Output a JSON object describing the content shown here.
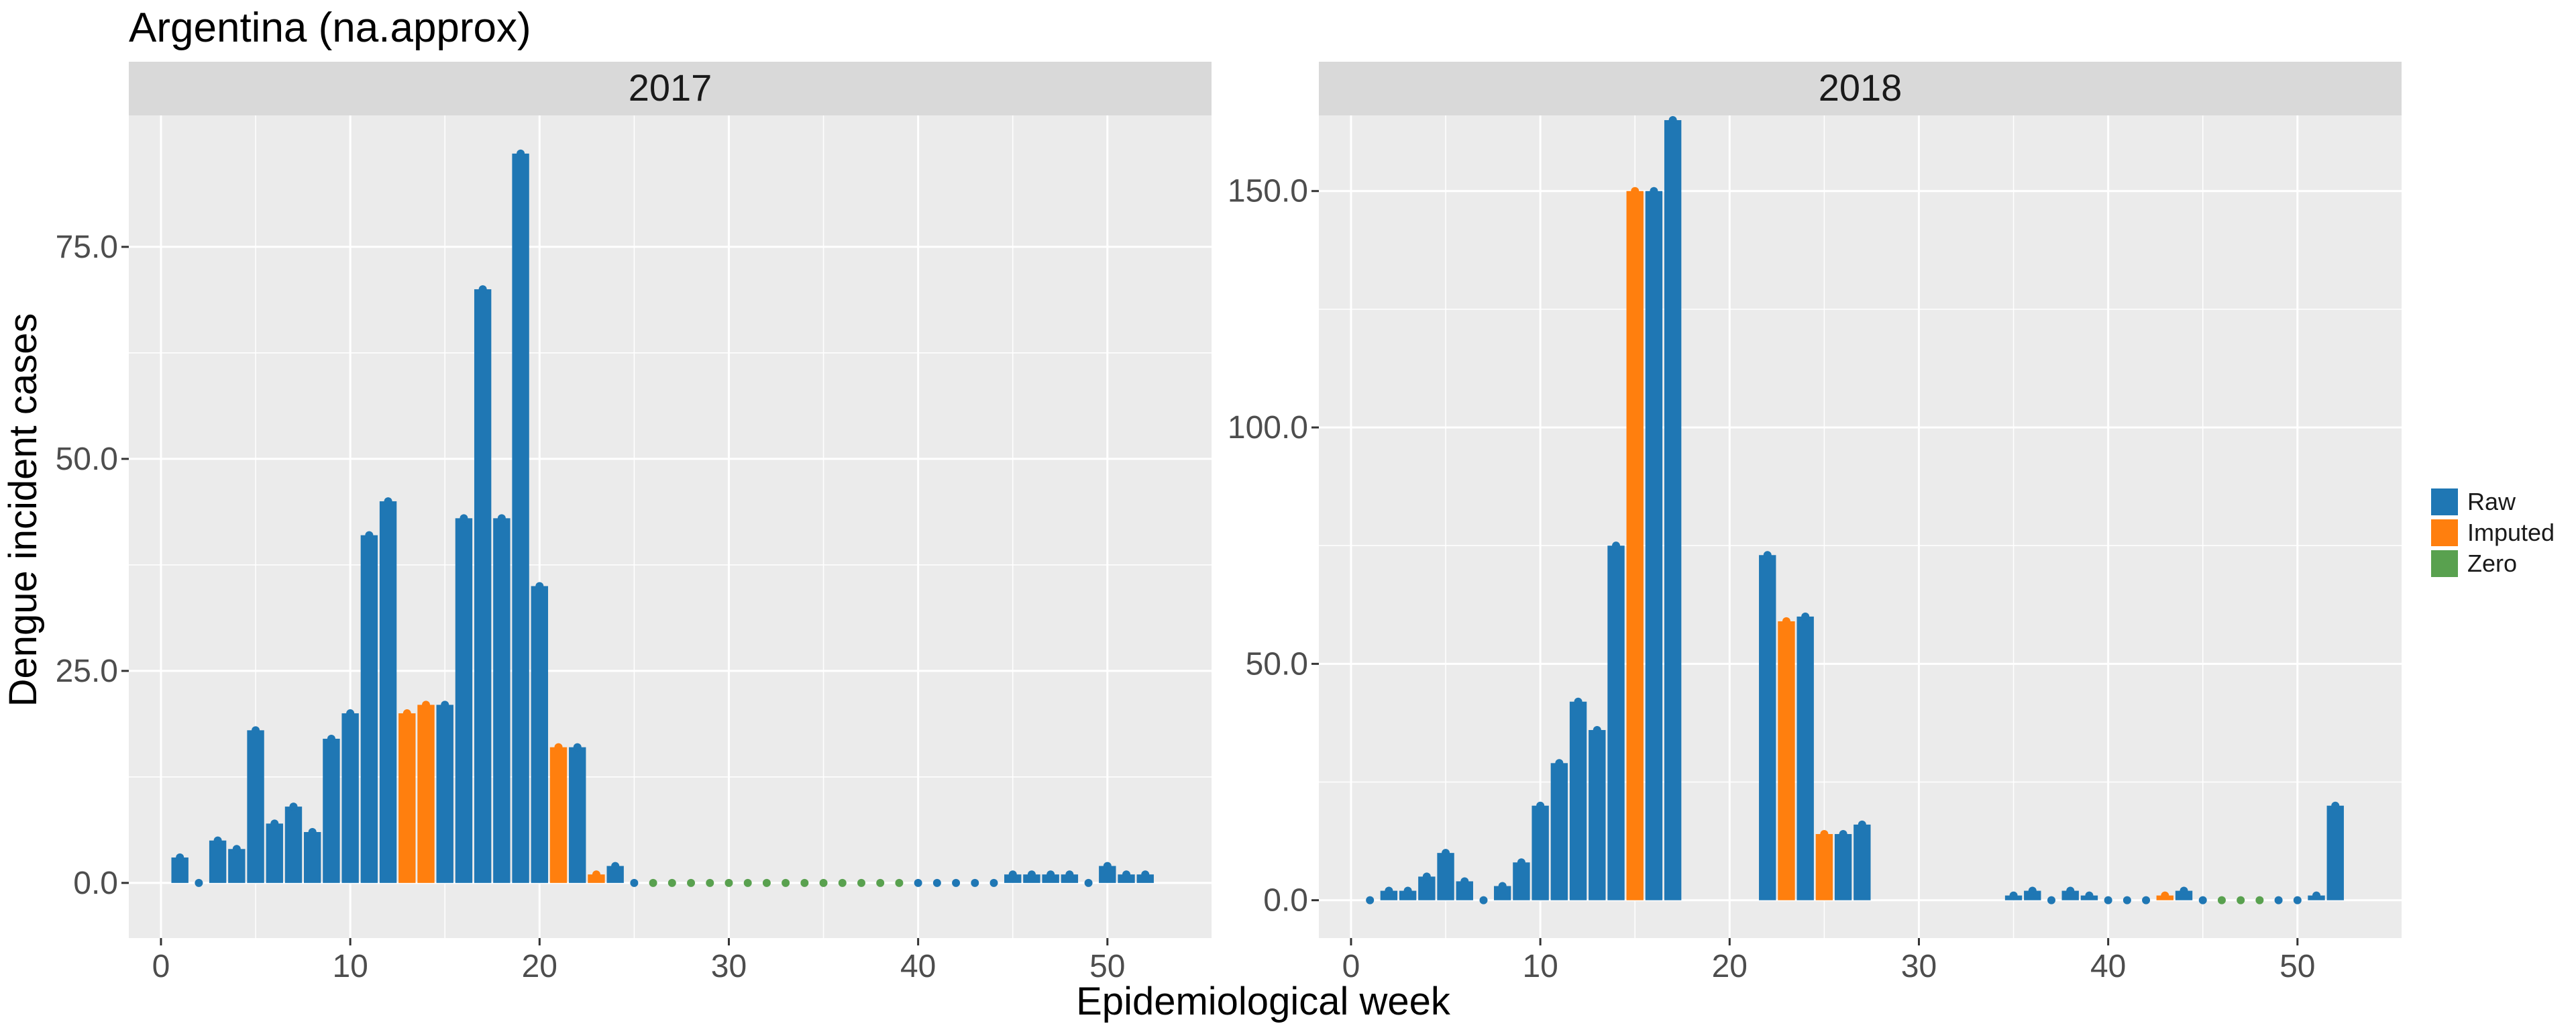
{
  "title": "Argentina (na.approx)",
  "x_axis_label": "Epidemiological week",
  "y_axis_label": "Dengue incident cases",
  "legend": [
    {
      "label": "Raw",
      "color": "#1f77b4"
    },
    {
      "label": "Imputed",
      "color": "#ff7f0e"
    },
    {
      "label": "Zero",
      "color": "#59a14f"
    }
  ],
  "colors": {
    "panel_bg": "#ebebeb",
    "strip_bg": "#d9d9d9",
    "grid": "#ffffff",
    "axis_text": "#4d4d4d"
  },
  "chart_data": [
    {
      "type": "bar",
      "title": "2017",
      "xlabel": "Epidemiological week",
      "ylabel": "Dengue incident cases",
      "xlim": [
        -1.7,
        55.5
      ],
      "ylim": [
        -6.5,
        90.5
      ],
      "xticks": [
        0,
        10,
        20,
        30,
        40,
        50
      ],
      "yticks": [
        0,
        25,
        50,
        75
      ],
      "ytick_labels": [
        "0.0",
        "25.0",
        "50.0",
        "75.0"
      ],
      "grid": true,
      "weeks": [
        1,
        2,
        3,
        4,
        5,
        6,
        7,
        8,
        9,
        10,
        11,
        12,
        13,
        14,
        15,
        16,
        17,
        18,
        19,
        20,
        21,
        22,
        23,
        24,
        25,
        26,
        27,
        28,
        29,
        30,
        31,
        32,
        33,
        34,
        35,
        36,
        37,
        38,
        39,
        40,
        41,
        42,
        43,
        44,
        45,
        46,
        47,
        48,
        49,
        50,
        51,
        52
      ],
      "values": [
        3,
        0,
        5,
        4,
        18,
        7,
        9,
        6,
        17,
        20,
        41,
        45,
        20,
        21,
        21,
        43,
        70,
        43,
        86,
        35,
        16,
        16,
        1,
        2,
        0,
        0,
        0,
        0,
        0,
        0,
        0,
        0,
        0,
        0,
        0,
        0,
        0,
        0,
        0,
        0,
        0,
        0,
        0,
        0,
        1,
        1,
        1,
        1,
        0,
        2,
        1,
        1
      ],
      "status": [
        "Raw",
        "Raw",
        "Raw",
        "Raw",
        "Raw",
        "Raw",
        "Raw",
        "Raw",
        "Raw",
        "Raw",
        "Raw",
        "Raw",
        "Imputed",
        "Imputed",
        "Raw",
        "Raw",
        "Raw",
        "Raw",
        "Raw",
        "Raw",
        "Imputed",
        "Raw",
        "Imputed",
        "Raw",
        "Raw",
        "Zero",
        "Zero",
        "Zero",
        "Zero",
        "Zero",
        "Zero",
        "Zero",
        "Zero",
        "Zero",
        "Zero",
        "Zero",
        "Zero",
        "Zero",
        "Zero",
        "Raw",
        "Raw",
        "Raw",
        "Raw",
        "Raw",
        "Raw",
        "Raw",
        "Raw",
        "Raw",
        "Raw",
        "Raw",
        "Raw",
        "Raw"
      ]
    },
    {
      "type": "bar",
      "title": "2018",
      "xlabel": "Epidemiological week",
      "ylabel": "Dengue incident cases",
      "xlim": [
        -1.7,
        55.5
      ],
      "ylim": [
        -8,
        166
      ],
      "xticks": [
        0,
        10,
        20,
        30,
        40,
        50
      ],
      "yticks": [
        0,
        50,
        100,
        150
      ],
      "ytick_labels": [
        "0.0",
        "50.0",
        "100.0",
        "150.0"
      ],
      "grid": true,
      "weeks": [
        1,
        2,
        3,
        4,
        5,
        6,
        7,
        8,
        9,
        10,
        11,
        12,
        13,
        14,
        15,
        16,
        17,
        22,
        23,
        24,
        25,
        26,
        27,
        35,
        36,
        37,
        38,
        39,
        40,
        41,
        42,
        43,
        44,
        45,
        46,
        47,
        48,
        49,
        50,
        51,
        52
      ],
      "values": [
        0,
        2,
        2,
        5,
        10,
        4,
        0,
        3,
        8,
        20,
        29,
        42,
        36,
        75,
        150,
        150,
        165,
        73,
        59,
        60,
        14,
        14,
        16,
        1,
        2,
        0,
        2,
        1,
        0,
        0,
        0,
        1,
        2,
        0,
        0,
        0,
        0,
        0,
        0,
        1,
        20
      ],
      "status": [
        "Raw",
        "Raw",
        "Raw",
        "Raw",
        "Raw",
        "Raw",
        "Raw",
        "Raw",
        "Raw",
        "Raw",
        "Raw",
        "Raw",
        "Raw",
        "Raw",
        "Imputed",
        "Raw",
        "Raw",
        "Raw",
        "Imputed",
        "Raw",
        "Imputed",
        "Raw",
        "Raw",
        "Raw",
        "Raw",
        "Raw",
        "Raw",
        "Raw",
        "Raw",
        "Raw",
        "Raw",
        "Imputed",
        "Raw",
        "Raw",
        "Zero",
        "Zero",
        "Zero",
        "Raw",
        "Raw",
        "Raw",
        "Raw"
      ]
    }
  ]
}
